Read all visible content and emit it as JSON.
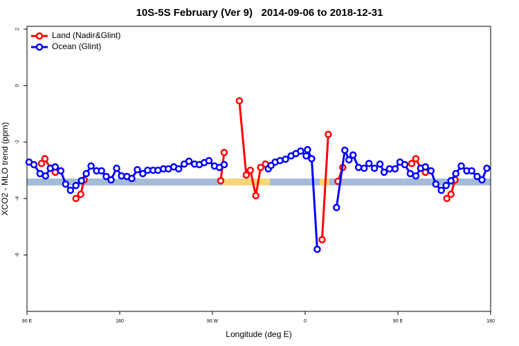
{
  "chart_data": {
    "type": "line",
    "title": "10S-5S February (Ver 9)   2014-09-06 to 2018-12-31",
    "x_label": "Longitude (deg E)",
    "y_label": "XCO2 - MLO trend (ppm)",
    "xlim": [
      90,
      540
    ],
    "ylim": [
      -8,
      2.1
    ],
    "xticks": [
      {
        "value": 90,
        "label": "90 E"
      },
      180,
      {
        "value": 270,
        "label": "90 W"
      },
      {
        "value": 360,
        "label": "0"
      },
      {
        "value": 450,
        "label": "90 E"
      },
      {
        "value": 540,
        "label": "180"
      }
    ],
    "yticks": [
      -6,
      -4,
      -2,
      0,
      2
    ],
    "legend": "topleft",
    "series": [
      {
        "name": "Land (Nadir&Glint)",
        "color": "#ff0000",
        "x": [
          104.1,
          107.4,
          112.7,
          117.4,
          null,
          137.5,
          142.2,
          145.5,
          null,
          278.0,
          281.4,
          null,
          296.1,
          302.8,
          306.8,
          312.1,
          316.8,
          321.5,
          null,
          376.4,
          382.4,
          null,
          391.8,
          396.5,
          null,
          463.4,
          467.4,
          472.1,
          476.7,
          null,
          497.5,
          501.5,
          505.5
        ],
        "values": [
          -2.76,
          -2.59,
          -2.93,
          -3.07,
          null,
          -4.0,
          -3.85,
          -3.34,
          null,
          -3.37,
          -2.37,
          null,
          -0.54,
          -3.17,
          -3.0,
          -3.9,
          -2.9,
          -2.78,
          null,
          -5.46,
          -1.73,
          null,
          -3.39,
          -2.9,
          null,
          -2.76,
          -2.59,
          -2.93,
          -3.07,
          null,
          -4.0,
          -3.85,
          -3.34
        ]
      },
      {
        "name": "Ocean (Glint)",
        "color": "#0000ff",
        "x": [
          92.0,
          96.7,
          102.7,
          108.0,
          112.7,
          117.4,
          122.8,
          127.5,
          132.2,
          137.5,
          142.9,
          147.5,
          152.2,
          157.6,
          162.3,
          166.9,
          171.6,
          177.0,
          181.7,
          187.0,
          191.7,
          197.1,
          202.4,
          207.1,
          212.4,
          217.1,
          222.5,
          227.2,
          232.5,
          237.2,
          242.6,
          247.2,
          252.6,
          257.3,
          262.0,
          266.6,
          272.0,
          276.7,
          281.4,
          null,
          324.2,
          326.9,
          330.9,
          335.6,
          340.9,
          346.3,
          351.0,
          355.6,
          361.0,
          362.3,
          366.3,
          371.7,
          null,
          390.4,
          398.5,
          402.5,
          406.5,
          411.8,
          417.2,
          421.9,
          427.2,
          432.6,
          436.6,
          441.9,
          447.3,
          452.0,
          456.7,
          462.0,
          467.4,
          472.1,
          476.7,
          482.1,
          486.8,
          492.1,
          496.8,
          501.5,
          506.2,
          511.5,
          516.9,
          521.6,
          526.9,
          531.6,
          536.3
        ],
        "values": [
          -2.71,
          -2.8,
          -3.12,
          -3.2,
          -2.93,
          -2.88,
          -3.02,
          -3.49,
          -3.71,
          -3.54,
          -3.37,
          -3.12,
          -2.85,
          -3.02,
          -3.02,
          -3.22,
          -3.34,
          -2.93,
          -3.2,
          -3.22,
          -3.29,
          -2.98,
          -3.12,
          -3.0,
          -3.0,
          -3.0,
          -2.95,
          -2.95,
          -2.88,
          -2.95,
          -2.78,
          -2.68,
          -2.78,
          -2.8,
          -2.73,
          -2.66,
          -2.85,
          -2.9,
          -2.8,
          null,
          -2.95,
          -2.83,
          -2.71,
          -2.66,
          -2.61,
          -2.49,
          -2.41,
          -2.32,
          -2.49,
          -2.27,
          -2.59,
          -5.8,
          null,
          -4.32,
          -2.29,
          -2.63,
          -2.46,
          -2.9,
          -2.93,
          -2.76,
          -2.93,
          -2.78,
          -3.07,
          -2.95,
          -2.95,
          -2.71,
          -2.8,
          -3.12,
          -3.2,
          -2.93,
          -2.88,
          -3.02,
          -3.49,
          -3.71,
          -3.54,
          -3.37,
          -3.12,
          -2.85,
          -3.02,
          -3.02,
          -3.22,
          -3.34,
          -2.93
        ]
      }
    ]
  }
}
